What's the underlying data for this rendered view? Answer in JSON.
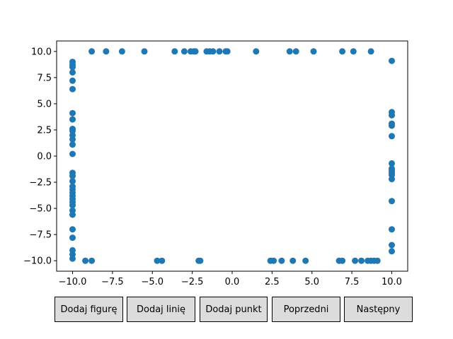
{
  "chart_data": {
    "type": "scatter",
    "xlim": [
      -11,
      11
    ],
    "ylim": [
      -11,
      11
    ],
    "x_ticks": [
      -10.0,
      -7.5,
      -5.0,
      -2.5,
      0.0,
      2.5,
      5.0,
      7.5,
      10.0
    ],
    "x_tick_labels": [
      "−10.0",
      "−7.5",
      "−5.0",
      "−2.5",
      "0.0",
      "2.5",
      "5.0",
      "7.5",
      "10.0"
    ],
    "y_ticks": [
      10.0,
      7.5,
      5.0,
      2.5,
      0.0,
      -2.5,
      -5.0,
      -7.5,
      -10.0
    ],
    "y_tick_labels": [
      "10.0",
      "7.5",
      "5.0",
      "2.5",
      "0.0",
      "−2.5",
      "−5.0",
      "−7.5",
      "−10.0"
    ],
    "grid": false,
    "color": "#1f77b4",
    "points": [
      [
        -8.8,
        10
      ],
      [
        -7.9,
        10
      ],
      [
        -6.9,
        10
      ],
      [
        -5.5,
        10
      ],
      [
        -3.6,
        10
      ],
      [
        -3.0,
        10
      ],
      [
        -2.6,
        10
      ],
      [
        -2.4,
        10
      ],
      [
        -2.3,
        10
      ],
      [
        -1.6,
        10
      ],
      [
        -1.4,
        10
      ],
      [
        -1.2,
        10
      ],
      [
        -0.8,
        10
      ],
      [
        -0.4,
        10
      ],
      [
        -0.3,
        10
      ],
      [
        1.5,
        10
      ],
      [
        3.6,
        10
      ],
      [
        4.0,
        10
      ],
      [
        5.1,
        10
      ],
      [
        6.9,
        10
      ],
      [
        7.6,
        10
      ],
      [
        8.7,
        10
      ],
      [
        10,
        9.1
      ],
      [
        10,
        4.2
      ],
      [
        10,
        3.9
      ],
      [
        10,
        3.1
      ],
      [
        10,
        2.9
      ],
      [
        10,
        1.9
      ],
      [
        10,
        -0.7
      ],
      [
        10,
        -1.2
      ],
      [
        10,
        -1.4
      ],
      [
        10,
        -1.6
      ],
      [
        10,
        -1.8
      ],
      [
        10,
        -2.2
      ],
      [
        10,
        -4.3
      ],
      [
        10,
        -7.0
      ],
      [
        10,
        -8.5
      ],
      [
        10,
        -9.1
      ],
      [
        -9.2,
        -10
      ],
      [
        -8.8,
        -10
      ],
      [
        -4.7,
        -10
      ],
      [
        -4.4,
        -10
      ],
      [
        -2.1,
        -10
      ],
      [
        -2.0,
        -10
      ],
      [
        2.4,
        -10
      ],
      [
        2.6,
        -10
      ],
      [
        3.1,
        -10
      ],
      [
        3.8,
        -10
      ],
      [
        4.6,
        -10
      ],
      [
        6.7,
        -10
      ],
      [
        6.9,
        -10
      ],
      [
        7.7,
        -10
      ],
      [
        8.1,
        -10
      ],
      [
        8.5,
        -10
      ],
      [
        8.7,
        -10
      ],
      [
        8.9,
        -10
      ],
      [
        9.1,
        -10
      ],
      [
        -10,
        9.0
      ],
      [
        -10,
        8.7
      ],
      [
        -10,
        8.5
      ],
      [
        -10,
        8.0
      ],
      [
        -10,
        7.2
      ],
      [
        -10,
        6.4
      ],
      [
        -10,
        4.1
      ],
      [
        -10,
        3.5
      ],
      [
        -10,
        2.6
      ],
      [
        -10,
        2.4
      ],
      [
        -10,
        2.0
      ],
      [
        -10,
        1.6
      ],
      [
        -10,
        1.1
      ],
      [
        -10,
        0.2
      ],
      [
        -10,
        -1.6
      ],
      [
        -10,
        -1.9
      ],
      [
        -10,
        -2.4
      ],
      [
        -10,
        -2.9
      ],
      [
        -10,
        -3.2
      ],
      [
        -10,
        -3.5
      ],
      [
        -10,
        -3.8
      ],
      [
        -10,
        -4.1
      ],
      [
        -10,
        -4.4
      ],
      [
        -10,
        -4.7
      ],
      [
        -10,
        -5.2
      ],
      [
        -10,
        -5.6
      ],
      [
        -10,
        -7.0
      ],
      [
        -10,
        -7.8
      ],
      [
        -10,
        -9.0
      ],
      [
        -10,
        -9.4
      ],
      [
        -10,
        -9.8
      ]
    ]
  },
  "buttons": {
    "add_figure": "Dodaj figurę",
    "add_line": "Dodaj linię",
    "add_point": "Dodaj punkt",
    "previous": "Poprzedni",
    "next": "Następny"
  }
}
